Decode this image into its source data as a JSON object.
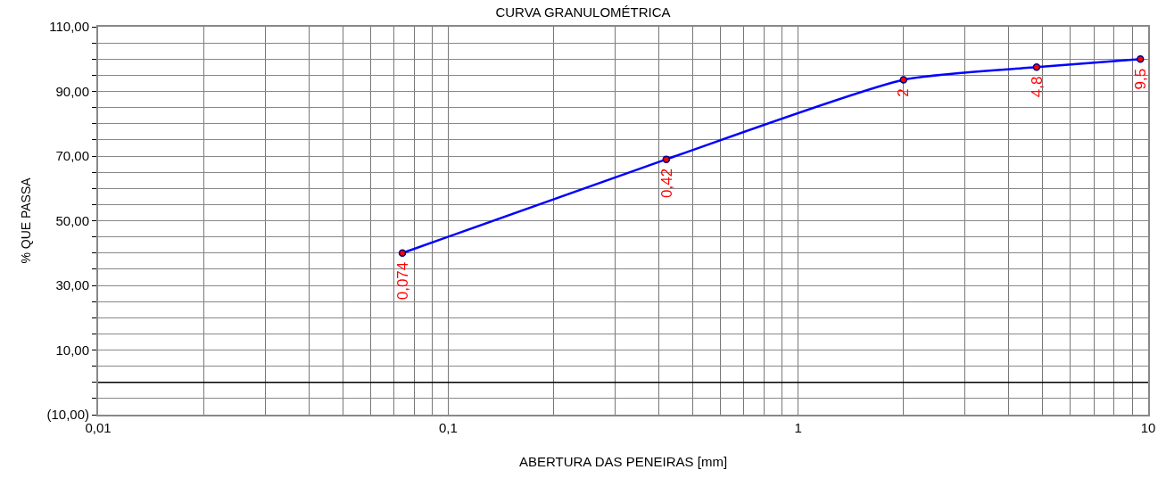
{
  "chart_data": {
    "type": "line",
    "title": "CURVA GRANULOMÉTRICA",
    "xlabel": "ABERTURA DAS PENEIRAS [mm]",
    "ylabel": "% QUE PASSA",
    "x": [
      0.074,
      0.42,
      2,
      4.8,
      9.5
    ],
    "series": [
      {
        "color": "#0000ff",
        "values": [
          40,
          69,
          93.6,
          97.5,
          100
        ]
      }
    ],
    "marker": "circle",
    "line_style": "solid",
    "log": "x",
    "grid": true,
    "xlim": [
      0.01,
      10
    ],
    "xticks": [
      {
        "value": 0.01,
        "label": "0,01"
      },
      {
        "value": 0.02,
        "label": null
      },
      {
        "value": 0.03,
        "label": null
      },
      {
        "value": 0.04,
        "label": null
      },
      {
        "value": 0.05,
        "label": null
      },
      {
        "value": 0.06,
        "label": null
      },
      {
        "value": 0.07,
        "label": null
      },
      {
        "value": 0.08,
        "label": null
      },
      {
        "value": 0.09,
        "label": null
      },
      {
        "value": 0.1,
        "label": "0,1"
      },
      {
        "value": 0.2,
        "label": null
      },
      {
        "value": 0.3,
        "label": null
      },
      {
        "value": 0.4,
        "label": null
      },
      {
        "value": 0.5,
        "label": null
      },
      {
        "value": 0.6,
        "label": null
      },
      {
        "value": 0.7,
        "label": null
      },
      {
        "value": 0.8,
        "label": null
      },
      {
        "value": 0.9,
        "label": null
      },
      1,
      {
        "value": 2,
        "label": null
      },
      {
        "value": 3,
        "label": null
      },
      {
        "value": 4,
        "label": null
      },
      {
        "value": 5,
        "label": null
      },
      {
        "value": 6,
        "label": null
      },
      {
        "value": 7,
        "label": null
      },
      {
        "value": 8,
        "label": null
      },
      {
        "value": 9,
        "label": null
      },
      10
    ],
    "ylim": [
      -10,
      110
    ],
    "yticks": [
      {
        "value": -10,
        "label": "(10,00)"
      },
      {
        "value": -5,
        "label": null
      },
      {
        "value": 0,
        "label": null
      },
      {
        "value": 5,
        "label": null
      },
      {
        "value": 10,
        "label": "10,00"
      },
      {
        "value": 15,
        "label": null
      },
      {
        "value": 20,
        "label": null
      },
      {
        "value": 25,
        "label": null
      },
      {
        "value": 30,
        "label": "30,00"
      },
      {
        "value": 35,
        "label": null
      },
      {
        "value": 40,
        "label": null
      },
      {
        "value": 45,
        "label": null
      },
      {
        "value": 50,
        "label": "50,00"
      },
      {
        "value": 55,
        "label": null
      },
      {
        "value": 60,
        "label": null
      },
      {
        "value": 65,
        "label": null
      },
      {
        "value": 70,
        "label": "70,00"
      },
      {
        "value": 75,
        "label": null
      },
      {
        "value": 80,
        "label": null
      },
      {
        "value": 85,
        "label": null
      },
      {
        "value": 90,
        "label": "90,00"
      },
      {
        "value": 95,
        "label": null
      },
      {
        "value": 100,
        "label": null
      },
      {
        "value": 105,
        "label": null
      },
      {
        "value": 110,
        "label": "110,00"
      }
    ],
    "ref_lines": [
      {
        "axis": "y",
        "value": 0,
        "color": "#000000"
      }
    ],
    "annotations": [
      {
        "text": "0,074",
        "x": 0.074,
        "y": 40
      },
      {
        "text": "0,42",
        "x": 0.42,
        "y": 69
      },
      {
        "text": "2",
        "x": 2,
        "y": 93.6
      },
      {
        "text": "4,8",
        "x": 4.8,
        "y": 97.5
      },
      {
        "text": "9,5",
        "x": 9.5,
        "y": 100
      }
    ]
  }
}
